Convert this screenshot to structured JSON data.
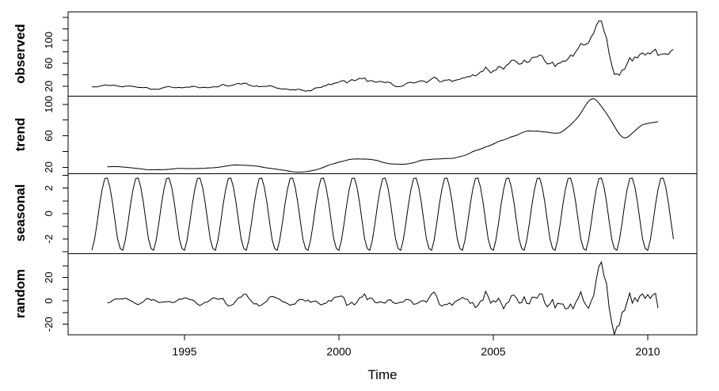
{
  "chart_data": {
    "type": "line",
    "title": "",
    "layout": "4 stacked panels sharing one x axis, black 1px lines on white, R decompose-style",
    "xlabel": "Time",
    "x_axis_ticks": [
      1995,
      2000,
      2005,
      2010
    ],
    "x_start": 1992.0,
    "frequency": 12,
    "x_end": 2010.833,
    "line_color": "#000000",
    "background_color": "#ffffff",
    "panels": [
      {
        "label": "observed",
        "ylim": [
          2.5,
          149.5
        ],
        "yticks": [
          20,
          40,
          60,
          80,
          100,
          120,
          140
        ],
        "ytick_labels": [
          "20",
          "60",
          "100"
        ]
      },
      {
        "label": "trend",
        "ylim": [
          11.9,
          110.2
        ],
        "yticks": [
          20,
          40,
          60,
          80,
          100
        ],
        "ytick_labels": [
          "20",
          "60",
          "100"
        ]
      },
      {
        "label": "seasonal",
        "ylim": [
          -3.15,
          3.15
        ],
        "yticks": [
          -3,
          -2,
          -1,
          0,
          1,
          2,
          3
        ],
        "ytick_labels": [
          "-2",
          "0",
          "2"
        ]
      },
      {
        "label": "random",
        "ylim": [
          -29,
          40.5
        ],
        "yticks": [
          -20,
          -10,
          0,
          10,
          20,
          30
        ],
        "ytick_labels": [
          "-20",
          "0",
          "20"
        ]
      }
    ],
    "observed": [
      18.9,
      19.0,
      18.9,
      20.2,
      20.9,
      22.4,
      21.8,
      21.3,
      21.9,
      21.7,
      20.3,
      19.4,
      19.0,
      20.1,
      20.3,
      20.3,
      19.9,
      19.1,
      17.9,
      18.0,
      17.5,
      18.1,
      16.7,
      14.5,
      15.0,
      14.8,
      14.7,
      16.4,
      17.9,
      19.1,
      19.7,
      18.4,
      17.5,
      17.7,
      18.1,
      17.2,
      18.0,
      18.5,
      18.5,
      19.9,
      19.7,
      18.4,
      17.3,
      18.0,
      18.2,
      17.4,
      18.0,
      19.0,
      18.9,
      19.1,
      21.3,
      23.5,
      21.2,
      20.4,
      21.3,
      22.0,
      23.9,
      24.9,
      23.7,
      25.4,
      25.2,
      22.2,
      21.0,
      19.7,
      20.8,
      19.2,
      19.6,
      19.9,
      19.8,
      21.3,
      20.2,
      18.3,
      16.7,
      16.1,
      15.0,
      15.4,
      14.9,
      13.7,
      14.1,
      13.4,
      15.0,
      14.4,
      13.0,
      11.3,
      12.5,
      12.0,
      14.7,
      17.3,
      17.7,
      17.9,
      20.1,
      21.3,
      23.8,
      22.7,
      25.0,
      26.1,
      27.2,
      29.4,
      29.9,
      25.7,
      28.8,
      31.8,
      29.7,
      31.3,
      33.9,
      33.1,
      34.4,
      28.5,
      29.6,
      29.6,
      27.2,
      27.4,
      28.6,
      27.6,
      26.5,
      27.5,
      26.2,
      22.2,
      19.7,
      19.3,
      19.7,
      20.7,
      24.4,
      26.3,
      27.0,
      25.5,
      26.9,
      28.4,
      29.7,
      28.9,
      26.3,
      29.4,
      33.0,
      35.8,
      33.5,
      28.2,
      28.1,
      30.7,
      30.8,
      31.6,
      28.3,
      30.3,
      31.1,
      32.1,
      34.3,
      34.7,
      36.8,
      36.7,
      40.3,
      38.0,
      40.8,
      44.9,
      46.0,
      53.3,
      48.5,
      43.3,
      46.8,
      48.0,
      54.3,
      53.0,
      49.8,
      56.3,
      59.0,
      65.0,
      65.5,
      62.4,
      58.3,
      59.4,
      65.5,
      61.6,
      62.9,
      69.7,
      70.9,
      71.0,
      74.4,
      73.1,
      63.9,
      58.9,
      59.4,
      62.0,
      54.5,
      59.3,
      60.6,
      63.9,
      63.5,
      67.5,
      74.1,
      72.4,
      79.9,
      86.2,
      94.6,
      91.7,
      93.0,
      95.4,
      105.6,
      112.6,
      125.4,
      133.9,
      133.4,
      116.6,
      103.9,
      76.6,
      57.4,
      41.0,
      41.7,
      39.2,
      48.0,
      49.8,
      59.2,
      69.7,
      64.1,
      71.1,
      69.5,
      75.8,
      78.0,
      74.3,
      78.2,
      76.4,
      81.2,
      84.5,
      73.7,
      75.4,
      76.4,
      76.6,
      75.3,
      81.9,
      84.2
    ],
    "seasonal_pattern": [
      -2.9,
      -2.1,
      -0.8,
      0.7,
      1.9,
      2.75,
      2.8,
      2.1,
      0.9,
      -0.6,
      -2.0,
      -2.75
    ],
    "trend_method": "centered 12-month moving average of observed",
    "random_method": "observed minus trend minus seasonal"
  }
}
